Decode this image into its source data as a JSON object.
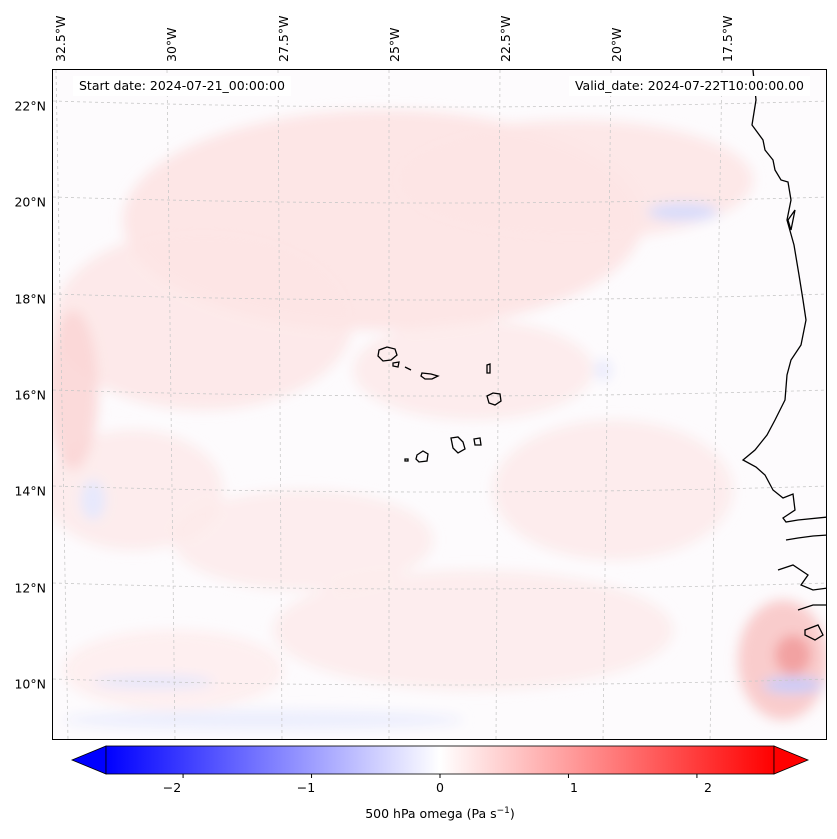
{
  "map": {
    "start_date": "Start date: 2024-07-21_00:00:00",
    "valid_date": "Valid_date: 2024-07-22T10:00:00.00",
    "extent": {
      "lon": [
        -32.6,
        -15.8
      ],
      "lat": [
        8.8,
        22.8
      ]
    },
    "lat_labels": [
      "22°N",
      "20°N",
      "18°N",
      "16°N",
      "14°N",
      "12°N",
      "10°N"
    ],
    "lat_values": [
      22,
      20,
      18,
      16,
      14,
      12,
      10
    ],
    "lon_labels": [
      "32.5°W",
      "30°W",
      "27.5°W",
      "25°W",
      "22.5°W",
      "20°W",
      "17.5°W"
    ],
    "lon_values": [
      -32.5,
      -30,
      -27.5,
      -25,
      -22.5,
      -20,
      -17.5
    ],
    "regions": [
      "Cape Verde Islands",
      "West African coast"
    ]
  },
  "colorbar": {
    "label_main": "500 hPa omega (Pa s",
    "label_exp": "−1",
    "label_close": ")",
    "ticks": [
      "−2",
      "−1",
      "0",
      "1",
      "2"
    ],
    "tick_values": [
      -2,
      -1,
      0,
      1,
      2
    ],
    "range": [
      -2.6,
      2.6
    ],
    "cmap_low": "#0000ff",
    "cmap_mid": "#ffffff",
    "cmap_high": "#ff0000"
  },
  "colors": {
    "coastline": "#000000",
    "grid": "#c8c8c8"
  }
}
